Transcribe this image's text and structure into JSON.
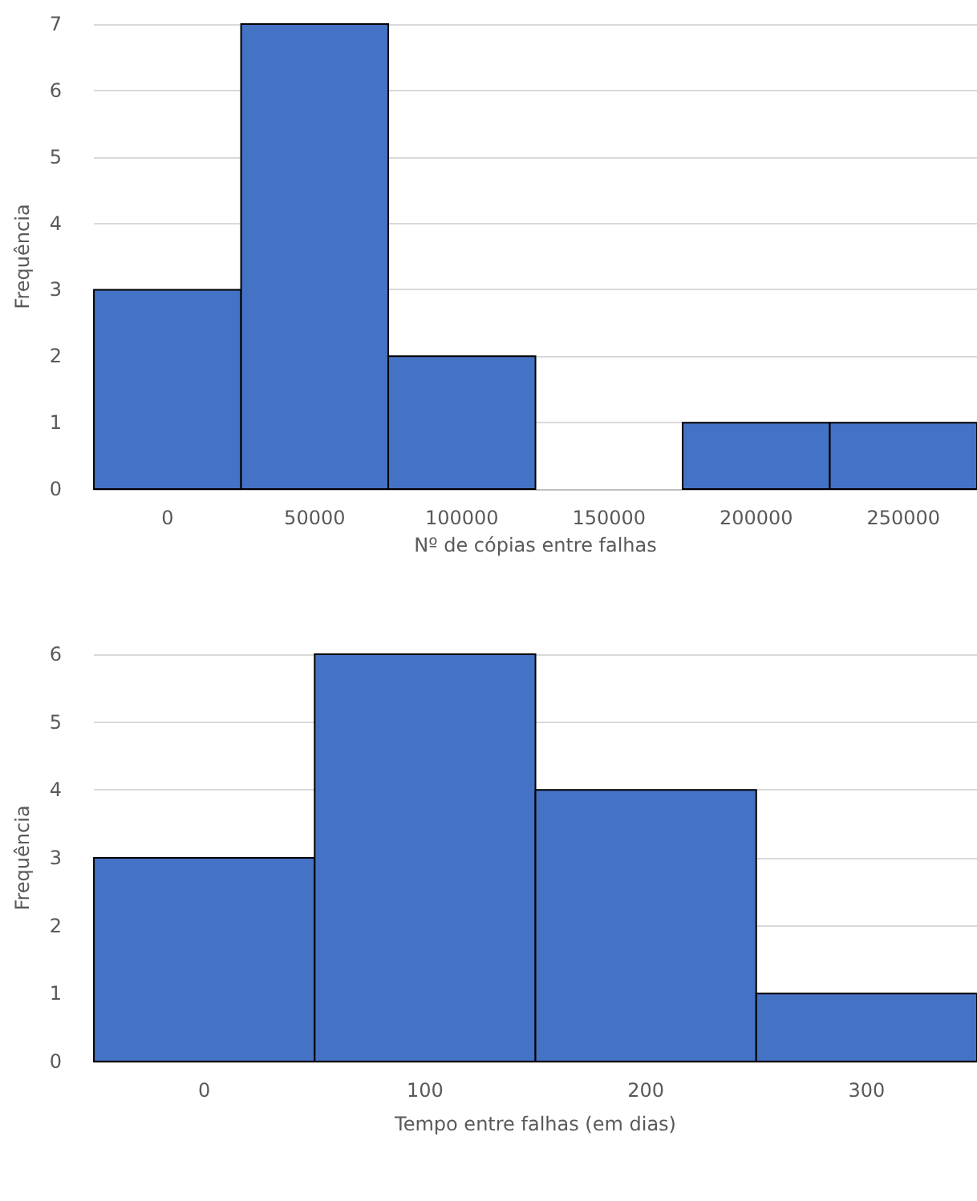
{
  "chart_data": [
    {
      "type": "histogram",
      "bins": [
        -25000,
        25000,
        75000,
        125000,
        175000,
        225000,
        275000
      ],
      "values": [
        3,
        7,
        2,
        0,
        1,
        1
      ],
      "color": "#4472c4",
      "xlabel": "Nº de cópias entre falhas",
      "ylabel": "Frequência",
      "xlim": [
        -25000,
        275000
      ],
      "xticks": [
        0,
        50000,
        100000,
        150000,
        200000,
        250000
      ],
      "ylim": [
        0,
        7
      ],
      "yticks": [
        0,
        1,
        2,
        3,
        4,
        5,
        6,
        7
      ],
      "grid": "y"
    },
    {
      "type": "histogram",
      "bins": [
        -50,
        50,
        150,
        250,
        350
      ],
      "values": [
        3,
        6,
        4,
        1
      ],
      "color": "#4472c4",
      "xlabel": "Tempo entre falhas (em dias)",
      "ylabel": "Frequência",
      "xlim": [
        -50,
        350
      ],
      "xticks": [
        0,
        100,
        200,
        300
      ],
      "ylim": [
        0,
        6
      ],
      "yticks": [
        0,
        1,
        2,
        3,
        4,
        5,
        6
      ],
      "grid": "y"
    }
  ]
}
